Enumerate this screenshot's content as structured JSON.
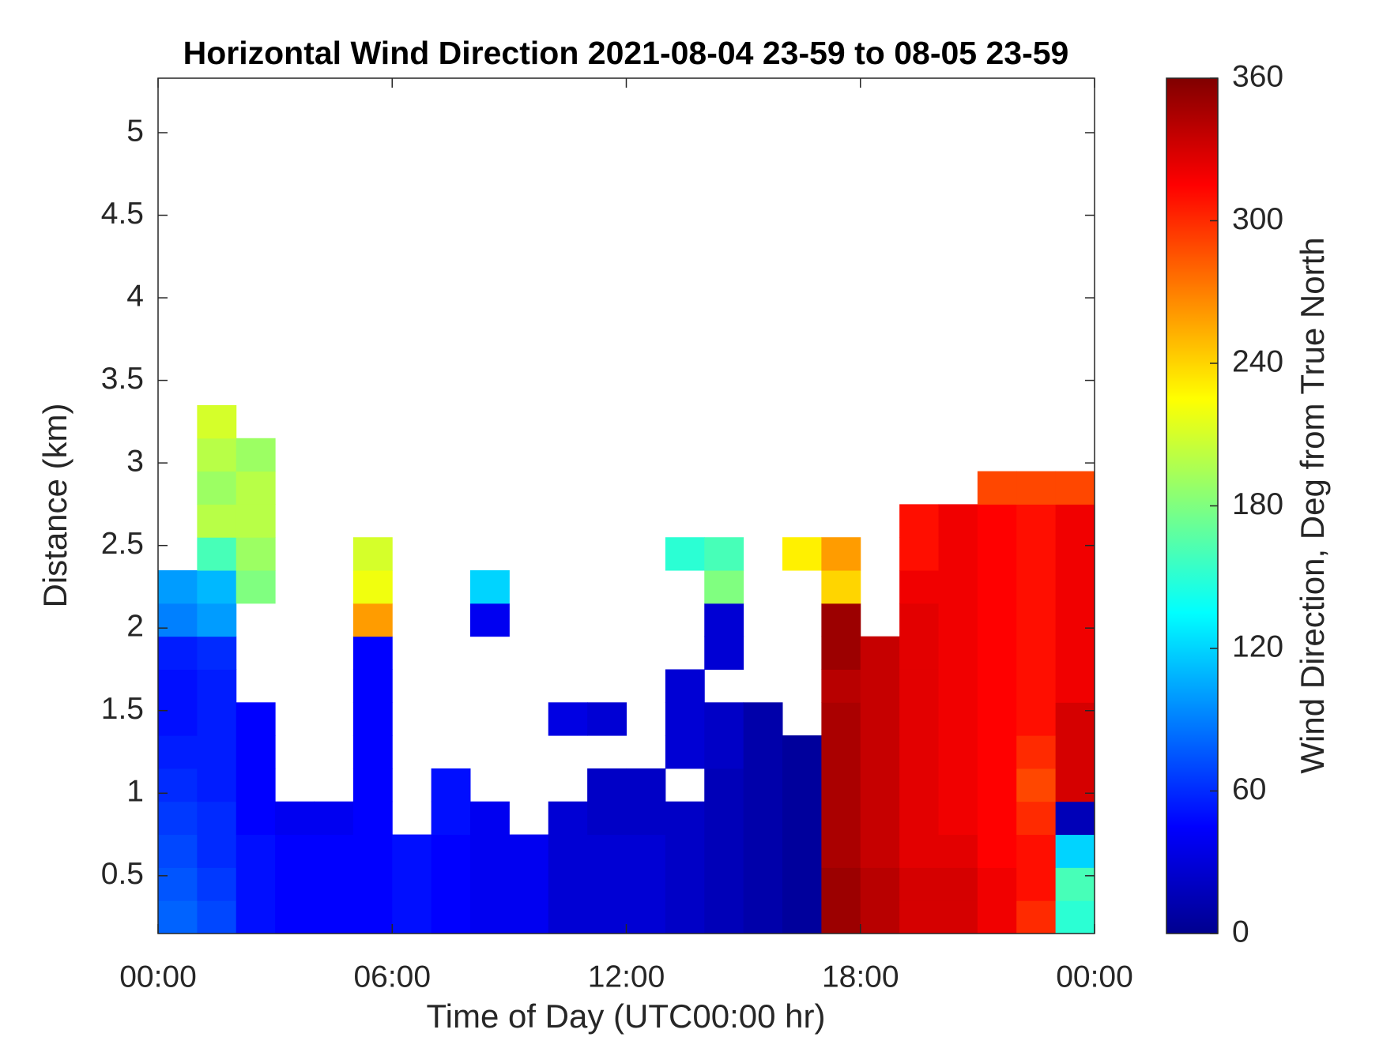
{
  "chart_data": {
    "type": "heatmap",
    "title": "Horizontal Wind Direction 2021-08-04 23-59 to 08-05 23-59",
    "xlabel": "Time of Day (UTC00:00 hr)",
    "ylabel": "Distance (km)",
    "colorbar_label": "Wind Direction, Deg from True North",
    "colormap": "jet",
    "x": [
      0.5,
      1.5,
      2.5,
      3.5,
      4.5,
      5.5,
      6.5,
      7.5,
      8.5,
      9.5,
      10.5,
      11.5,
      12.5,
      13.5,
      14.5,
      15.5,
      16.5,
      17.5,
      18.5,
      19.5,
      20.5,
      21.5,
      22.5,
      23.5
    ],
    "y": [
      0.25,
      0.45,
      0.65,
      0.85,
      1.05,
      1.25,
      1.45,
      1.65,
      1.85,
      2.05,
      2.25,
      2.45,
      2.65,
      2.85,
      3.05,
      3.25
    ],
    "values": [
      [
        80,
        70,
        50,
        45,
        45,
        45,
        50,
        45,
        40,
        40,
        30,
        30,
        30,
        25,
        20,
        15,
        10,
        350,
        340,
        330,
        330,
        320,
        300,
        150
      ],
      [
        75,
        65,
        50,
        45,
        45,
        45,
        50,
        45,
        40,
        40,
        30,
        30,
        30,
        25,
        20,
        15,
        10,
        350,
        340,
        330,
        330,
        320,
        310,
        160
      ],
      [
        70,
        60,
        50,
        45,
        45,
        45,
        50,
        45,
        40,
        40,
        30,
        30,
        30,
        25,
        20,
        15,
        10,
        345,
        335,
        325,
        325,
        315,
        310,
        120
      ],
      [
        65,
        60,
        45,
        40,
        40,
        45,
        null,
        50,
        40,
        null,
        30,
        25,
        25,
        25,
        20,
        15,
        10,
        345,
        335,
        325,
        320,
        315,
        300,
        20
      ],
      [
        60,
        55,
        45,
        null,
        null,
        45,
        null,
        50,
        null,
        null,
        null,
        25,
        25,
        null,
        20,
        15,
        10,
        345,
        335,
        325,
        320,
        315,
        290,
        330
      ],
      [
        55,
        55,
        45,
        null,
        null,
        45,
        null,
        null,
        null,
        null,
        null,
        null,
        null,
        30,
        25,
        15,
        10,
        345,
        335,
        325,
        320,
        315,
        300,
        330
      ],
      [
        50,
        55,
        45,
        null,
        null,
        45,
        null,
        null,
        null,
        null,
        35,
        30,
        null,
        30,
        25,
        15,
        null,
        345,
        335,
        325,
        320,
        315,
        310,
        330
      ],
      [
        50,
        55,
        null,
        null,
        null,
        45,
        null,
        null,
        null,
        null,
        null,
        null,
        null,
        30,
        null,
        null,
        null,
        340,
        335,
        325,
        320,
        315,
        310,
        320
      ],
      [
        55,
        60,
        null,
        null,
        null,
        45,
        null,
        null,
        null,
        null,
        null,
        null,
        null,
        null,
        30,
        null,
        null,
        350,
        335,
        325,
        320,
        315,
        310,
        320
      ],
      [
        90,
        100,
        null,
        null,
        null,
        260,
        null,
        null,
        40,
        null,
        null,
        null,
        null,
        null,
        30,
        null,
        null,
        350,
        null,
        325,
        320,
        315,
        310,
        320
      ],
      [
        100,
        110,
        180,
        null,
        null,
        220,
        null,
        null,
        120,
        null,
        null,
        null,
        null,
        null,
        180,
        null,
        null,
        240,
        null,
        320,
        320,
        315,
        310,
        320
      ],
      [
        null,
        160,
        190,
        null,
        null,
        210,
        null,
        null,
        null,
        null,
        null,
        null,
        null,
        150,
        160,
        null,
        230,
        260,
        null,
        310,
        320,
        315,
        310,
        320
      ],
      [
        null,
        200,
        200,
        null,
        null,
        null,
        null,
        null,
        null,
        null,
        null,
        null,
        null,
        null,
        null,
        null,
        null,
        null,
        null,
        310,
        320,
        315,
        310,
        320
      ],
      [
        null,
        190,
        200,
        null,
        null,
        null,
        null,
        null,
        null,
        null,
        null,
        null,
        null,
        null,
        null,
        null,
        null,
        null,
        null,
        null,
        null,
        290,
        290,
        290
      ],
      [
        null,
        200,
        190,
        null,
        null,
        null,
        null,
        null,
        null,
        null,
        null,
        null,
        null,
        null,
        null,
        null,
        null,
        null,
        null,
        null,
        null,
        null,
        null,
        null
      ],
      [
        null,
        210,
        null,
        null,
        null,
        null,
        null,
        null,
        null,
        null,
        null,
        null,
        null,
        null,
        null,
        null,
        null,
        null,
        null,
        null,
        null,
        null,
        null,
        null
      ]
    ],
    "xlim": [
      0,
      24
    ],
    "xticks": [
      {
        "value": 0,
        "label": "00:00"
      },
      {
        "value": 6,
        "label": "06:00"
      },
      {
        "value": 12,
        "label": "12:00"
      },
      {
        "value": 18,
        "label": "18:00"
      },
      {
        "value": 24,
        "label": "00:00"
      }
    ],
    "ylim": [
      0.15,
      5.33
    ],
    "yticks": [
      0.5,
      1,
      1.5,
      2,
      2.5,
      3,
      3.5,
      4,
      4.5,
      5
    ],
    "clim": [
      0,
      360
    ],
    "cticks": [
      0,
      60,
      120,
      180,
      240,
      300,
      360
    ]
  }
}
